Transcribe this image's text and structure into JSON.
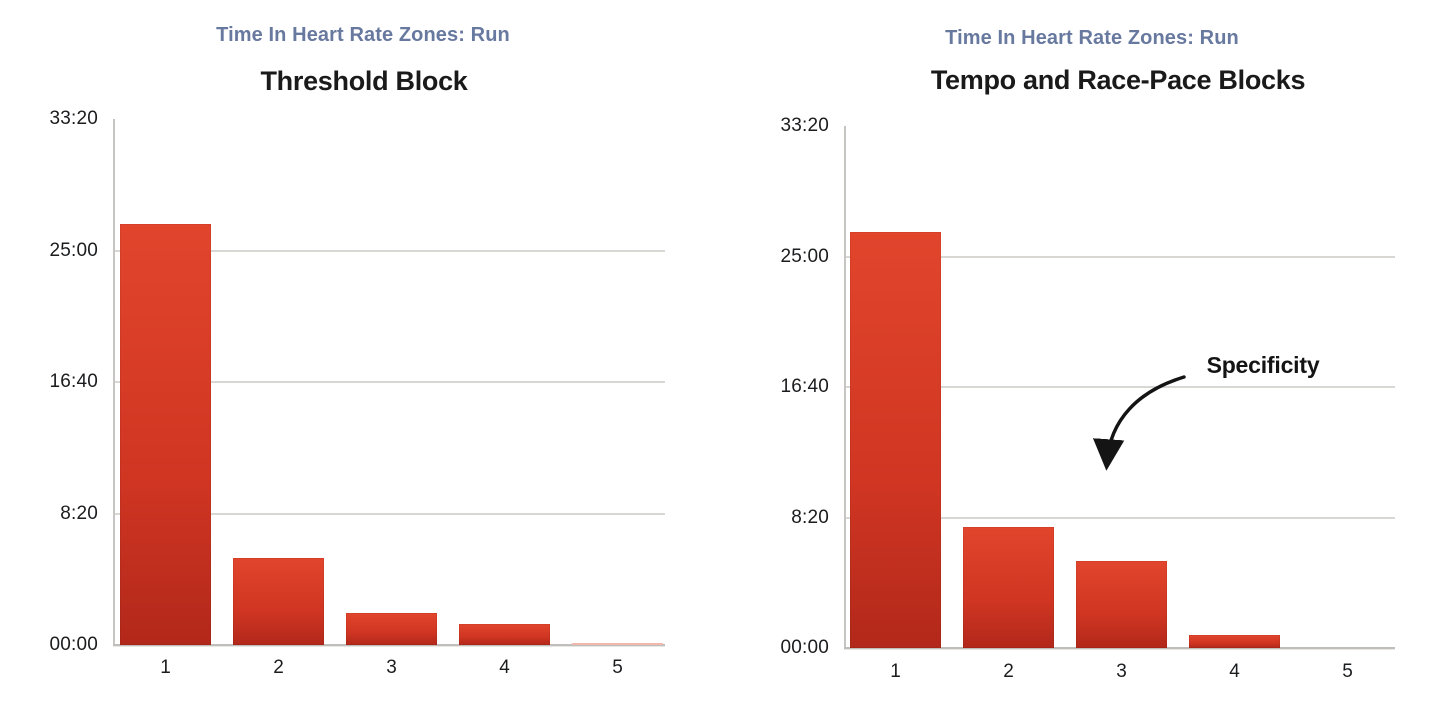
{
  "colors": {
    "background": "#FFFFFF",
    "subtitle": "#68799F",
    "title": "#1A1A1A",
    "tick_label": "#1B1C1E",
    "gridline": "#D8D7D4",
    "axis_line": "#C6C5C2",
    "baseline": "#BFBEBA",
    "bar_top": "#E2452C",
    "bar_bottom": "#B2281A",
    "tiny_bar": "#F0B9AB",
    "annotation": "#141414"
  },
  "chart_data": [
    {
      "type": "bar",
      "subtitle": "Time In Heart Rate Zones: Run",
      "title": "Threshold Block",
      "xlabel": "",
      "ylabel": "",
      "categories": [
        "1",
        "2",
        "3",
        "4",
        "5"
      ],
      "values_seconds": [
        1600,
        330,
        120,
        80,
        8
      ],
      "values_mmss": [
        "26:40",
        "5:30",
        "2:00",
        "1:20",
        "0:08"
      ],
      "y_ticks": [
        "33:20",
        "25:00",
        "16:40",
        "8:20",
        "00:00"
      ],
      "y_tick_seconds": [
        2000,
        1500,
        1000,
        500,
        0
      ],
      "gridline_seconds": [
        1500,
        1000,
        500
      ],
      "ylim_seconds": [
        0,
        2000
      ],
      "grid": true,
      "legend": false
    },
    {
      "type": "bar",
      "subtitle": "Time In Heart Rate Zones: Run",
      "title": "Tempo and Race-Pace Blocks",
      "xlabel": "",
      "ylabel": "",
      "categories": [
        "1",
        "2",
        "3",
        "4",
        "5"
      ],
      "values_seconds": [
        1595,
        465,
        335,
        50,
        0
      ],
      "values_mmss": [
        "26:35",
        "7:45",
        "5:35",
        "0:50",
        "0:00"
      ],
      "y_ticks": [
        "33:20",
        "25:00",
        "16:40",
        "8:20",
        "00:00"
      ],
      "y_tick_seconds": [
        2000,
        1500,
        1000,
        500,
        0
      ],
      "gridline_seconds": [
        1500,
        1000,
        500
      ],
      "ylim_seconds": [
        0,
        2000
      ],
      "grid": true,
      "legend": false,
      "annotation": {
        "text": "Specificity",
        "target_category": "3"
      }
    }
  ]
}
